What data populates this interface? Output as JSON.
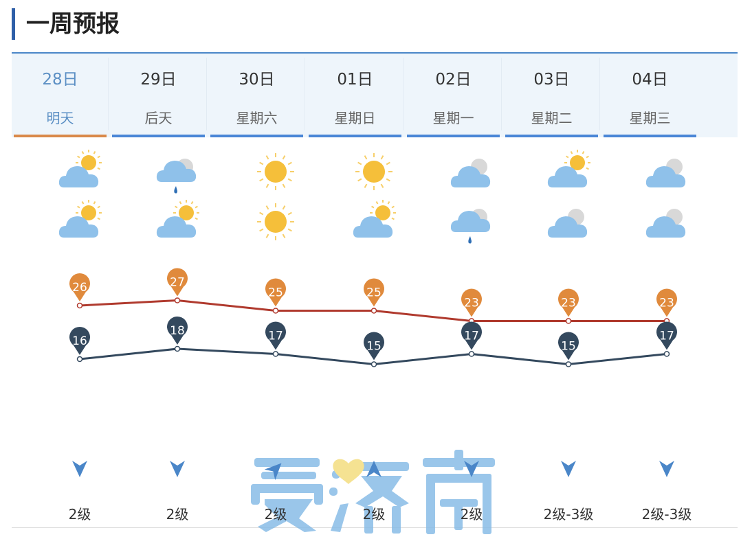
{
  "title": "一周预报",
  "days": [
    {
      "date": "28日",
      "label": "明天",
      "day_icon": "partly-cloudy",
      "night_icon": "partly-cloudy",
      "high": 26,
      "low": 16,
      "wind_dir": "down",
      "wind": "2级"
    },
    {
      "date": "29日",
      "label": "后天",
      "day_icon": "cloudy-rain",
      "night_icon": "partly-cloudy",
      "high": 27,
      "low": 18,
      "wind_dir": "down",
      "wind": "2级"
    },
    {
      "date": "30日",
      "label": "星期六",
      "day_icon": "sunny",
      "night_icon": "sunny",
      "high": 25,
      "low": 17,
      "wind_dir": "northeast",
      "wind": "2级"
    },
    {
      "date": "01日",
      "label": "星期日",
      "day_icon": "sunny",
      "night_icon": "partly-cloudy",
      "high": 25,
      "low": 15,
      "wind_dir": "up",
      "wind": "2级"
    },
    {
      "date": "02日",
      "label": "星期一",
      "day_icon": "cloudy",
      "night_icon": "cloudy-rain",
      "high": 23,
      "low": 17,
      "wind_dir": "down",
      "wind": "2级"
    },
    {
      "date": "03日",
      "label": "星期二",
      "day_icon": "partly-cloudy",
      "night_icon": "cloudy",
      "high": 23,
      "low": 15,
      "wind_dir": "down",
      "wind": "2级-3级"
    },
    {
      "date": "04日",
      "label": "星期三",
      "day_icon": "cloudy",
      "night_icon": "cloudy",
      "high": 23,
      "low": 17,
      "wind_dir": "down",
      "wind": "2级-3级"
    }
  ],
  "colors": {
    "high": "#e08a3c",
    "high_line": "#b03a2e",
    "low": "#34495e",
    "accent": "#4a86d6",
    "active": "#d9894a"
  },
  "watermark": "爱济南"
}
